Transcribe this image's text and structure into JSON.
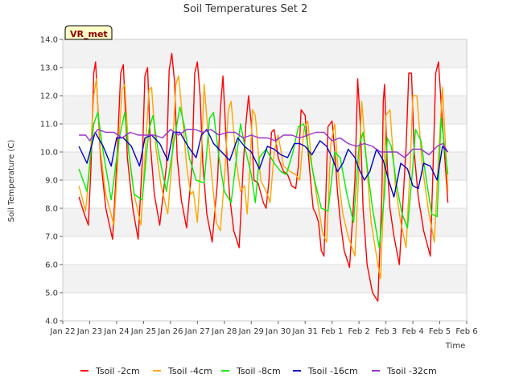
{
  "chart_data": {
    "type": "line",
    "title": "Soil Temperatures Set 2",
    "xlabel": "Time",
    "ylabel": "Soil Temperature (C)",
    "ylim": [
      4.0,
      14.0
    ],
    "xlim": [
      0,
      15
    ],
    "y_ticks": [
      4.0,
      5.0,
      6.0,
      7.0,
      8.0,
      9.0,
      10.0,
      11.0,
      12.0,
      13.0,
      14.0
    ],
    "y_tick_labels": [
      "4.0",
      "5.0",
      "6.0",
      "7.0",
      "8.0",
      "9.0",
      "10.0",
      "11.0",
      "12.0",
      "13.0",
      "14.0"
    ],
    "x_ticks": [
      0,
      1,
      2,
      3,
      4,
      5,
      6,
      7,
      8,
      9,
      10,
      11,
      12,
      13,
      14,
      15
    ],
    "x_tick_labels": [
      "Jan 22",
      "Jan 23",
      "Jan 24",
      "Jan 25",
      "Jan 26",
      "Jan 27",
      "Jan 28",
      "Jan 29",
      "Jan 30",
      "Jan 31",
      "Feb 1",
      "Feb 2",
      "Feb 3",
      "Feb 4",
      "Feb 5",
      "Feb 6"
    ],
    "grid": "horizontal bands",
    "legend_position": "bottom",
    "badge": "VR_met",
    "series": [
      {
        "name": "Tsoil -2cm",
        "color": "#ff0000",
        "x": [
          0.6,
          0.8,
          0.95,
          1.05,
          1.15,
          1.22,
          1.4,
          1.6,
          1.85,
          2.0,
          2.15,
          2.25,
          2.4,
          2.6,
          2.8,
          2.95,
          3.05,
          3.15,
          3.25,
          3.4,
          3.6,
          3.85,
          3.95,
          4.05,
          4.15,
          4.25,
          4.4,
          4.6,
          4.8,
          4.9,
          5.0,
          5.1,
          5.2,
          5.35,
          5.55,
          5.75,
          5.85,
          5.95,
          6.1,
          6.2,
          6.35,
          6.55,
          6.7,
          6.8,
          6.9,
          7.0,
          7.1,
          7.25,
          7.45,
          7.55,
          7.65,
          7.75,
          7.85,
          8.0,
          8.2,
          8.35,
          8.5,
          8.65,
          8.75,
          8.85,
          9.0,
          9.2,
          9.3,
          9.4,
          9.5,
          9.6,
          9.7,
          9.85,
          10.0,
          10.1,
          10.2,
          10.3,
          10.45,
          10.65,
          10.85,
          10.95,
          11.05,
          11.15,
          11.3,
          11.5,
          11.7,
          11.85,
          11.9,
          11.95,
          12.05,
          12.15,
          12.3,
          12.5,
          12.75,
          12.85,
          12.95,
          13.05,
          13.2,
          13.4,
          13.65,
          13.75,
          13.85,
          13.95,
          14.1,
          14.3
        ],
        "y": [
          8.4,
          7.8,
          7.4,
          9.5,
          12.8,
          13.2,
          9.8,
          8.0,
          6.9,
          9.5,
          12.8,
          13.1,
          9.8,
          8.0,
          6.9,
          9.6,
          12.7,
          13.0,
          10.3,
          8.5,
          7.4,
          9.5,
          12.9,
          13.5,
          12.5,
          9.8,
          8.3,
          7.3,
          9.5,
          12.8,
          13.2,
          12.0,
          9.6,
          7.8,
          6.8,
          9.0,
          11.5,
          12.7,
          9.8,
          8.4,
          7.2,
          6.6,
          9.5,
          11.0,
          12.0,
          11.0,
          9.0,
          8.9,
          8.2,
          8.0,
          8.9,
          10.7,
          10.8,
          9.8,
          9.3,
          9.2,
          8.8,
          8.7,
          9.5,
          11.5,
          11.3,
          9.0,
          8.0,
          7.8,
          7.5,
          6.5,
          6.3,
          10.9,
          11.1,
          10.0,
          8.6,
          7.6,
          6.5,
          5.9,
          9.0,
          12.6,
          11.0,
          8.0,
          6.0,
          5.0,
          4.7,
          8.5,
          11.8,
          12.4,
          9.5,
          8.0,
          7.0,
          6.0,
          10.2,
          12.8,
          12.8,
          10.0,
          8.4,
          7.2,
          6.3,
          9.5,
          12.8,
          13.2,
          11.0,
          8.2
        ]
      },
      {
        "name": "Tsoil -4cm",
        "color": "#ffa500",
        "x": [
          0.6,
          0.85,
          1.0,
          1.15,
          1.25,
          1.4,
          1.6,
          1.9,
          2.05,
          2.2,
          2.3,
          2.45,
          2.65,
          2.9,
          3.05,
          3.2,
          3.3,
          3.45,
          3.65,
          3.9,
          4.05,
          4.2,
          4.3,
          4.45,
          4.6,
          4.75,
          4.85,
          5.0,
          5.15,
          5.25,
          5.45,
          5.7,
          5.85,
          6.0,
          6.15,
          6.25,
          6.45,
          6.6,
          6.75,
          6.85,
          6.95,
          7.05,
          7.15,
          7.35,
          7.6,
          7.7,
          7.85,
          8.0,
          8.2,
          8.45,
          8.65,
          8.8,
          8.95,
          9.1,
          9.25,
          9.45,
          9.65,
          9.8,
          9.95,
          10.1,
          10.25,
          10.4,
          10.6,
          10.85,
          11.0,
          11.1,
          11.25,
          11.45,
          11.7,
          11.8,
          11.9,
          12.0,
          12.15,
          12.35,
          12.55,
          12.75,
          12.9,
          13.0,
          13.15,
          13.35,
          13.6,
          13.8,
          13.95,
          14.1,
          14.3
        ],
        "y": [
          8.8,
          7.9,
          9.5,
          12.0,
          12.6,
          10.0,
          8.5,
          7.4,
          9.8,
          12.2,
          12.4,
          10.0,
          8.5,
          7.4,
          9.8,
          12.2,
          12.3,
          10.2,
          8.8,
          7.8,
          9.6,
          12.4,
          12.7,
          11.2,
          9.5,
          8.5,
          8.6,
          7.5,
          10.0,
          12.4,
          10.0,
          7.5,
          7.2,
          9.0,
          11.5,
          11.8,
          9.6,
          8.6,
          8.8,
          7.8,
          9.5,
          11.5,
          11.3,
          9.0,
          8.5,
          8.2,
          10.0,
          10.6,
          9.5,
          9.3,
          9.2,
          9.0,
          10.8,
          11.1,
          9.5,
          8.3,
          7.1,
          6.8,
          10.3,
          11.0,
          9.0,
          7.8,
          7.0,
          6.3,
          9.5,
          11.8,
          10.0,
          7.5,
          6.0,
          5.5,
          8.0,
          11.3,
          11.5,
          8.8,
          7.5,
          6.6,
          9.5,
          12.0,
          12.0,
          9.5,
          7.8,
          6.8,
          9.8,
          12.3,
          8.6
        ]
      },
      {
        "name": "Tsoil -8cm",
        "color": "#00ee00",
        "x": [
          0.6,
          0.9,
          1.15,
          1.3,
          1.5,
          1.8,
          2.1,
          2.3,
          2.45,
          2.65,
          2.95,
          3.2,
          3.35,
          3.55,
          3.85,
          4.15,
          4.35,
          4.5,
          4.7,
          4.95,
          5.25,
          5.45,
          5.6,
          5.8,
          6.0,
          6.25,
          6.45,
          6.6,
          6.8,
          7.0,
          7.15,
          7.3,
          7.55,
          7.85,
          8.1,
          8.3,
          8.55,
          8.75,
          8.95,
          9.15,
          9.35,
          9.6,
          9.85,
          10.1,
          10.3,
          10.55,
          10.8,
          11.0,
          11.15,
          11.3,
          11.5,
          11.75,
          11.95,
          12.05,
          12.2,
          12.4,
          12.6,
          12.8,
          13.0,
          13.1,
          13.3,
          13.5,
          13.7,
          13.9,
          14.05,
          14.3
        ],
        "y": [
          9.4,
          8.6,
          11.0,
          11.4,
          10.0,
          8.3,
          10.5,
          11.4,
          10.0,
          8.5,
          8.3,
          10.8,
          11.3,
          10.0,
          8.6,
          10.5,
          11.6,
          11.0,
          9.8,
          9.0,
          8.9,
          11.2,
          11.4,
          9.8,
          8.6,
          8.2,
          9.8,
          11.0,
          10.0,
          9.2,
          8.2,
          9.8,
          10.1,
          9.6,
          9.3,
          9.2,
          10.0,
          10.9,
          11.0,
          10.0,
          9.0,
          8.0,
          7.9,
          10.0,
          9.8,
          8.5,
          7.5,
          10.2,
          10.7,
          9.5,
          8.0,
          6.6,
          8.5,
          10.5,
          10.2,
          8.8,
          7.8,
          7.3,
          9.5,
          10.8,
          10.4,
          9.0,
          7.8,
          7.7,
          11.2,
          9.2
        ]
      },
      {
        "name": "Tsoil -16cm",
        "color": "#0000cc",
        "x": [
          0.6,
          0.9,
          1.2,
          1.5,
          1.8,
          2.0,
          2.25,
          2.55,
          2.85,
          3.05,
          3.3,
          3.6,
          3.9,
          4.1,
          4.35,
          4.65,
          4.95,
          5.15,
          5.35,
          5.6,
          5.9,
          6.2,
          6.5,
          6.75,
          7.0,
          7.3,
          7.6,
          7.85,
          8.1,
          8.35,
          8.6,
          8.8,
          9.0,
          9.25,
          9.55,
          9.8,
          10.0,
          10.2,
          10.4,
          10.6,
          10.85,
          11.0,
          11.2,
          11.4,
          11.65,
          11.9,
          12.1,
          12.3,
          12.55,
          12.8,
          13.0,
          13.2,
          13.4,
          13.65,
          13.9,
          14.1,
          14.3
        ],
        "y": [
          10.2,
          9.6,
          10.7,
          10.2,
          9.5,
          10.5,
          10.5,
          10.2,
          9.5,
          10.5,
          10.6,
          10.3,
          9.7,
          10.7,
          10.7,
          10.2,
          9.8,
          10.6,
          10.8,
          10.3,
          10.0,
          9.7,
          10.5,
          10.2,
          10.0,
          9.4,
          10.2,
          10.1,
          9.9,
          9.8,
          10.3,
          10.3,
          10.2,
          9.9,
          10.4,
          10.2,
          9.8,
          9.3,
          9.6,
          10.1,
          9.8,
          9.4,
          9.0,
          9.3,
          10.1,
          9.7,
          9.0,
          8.4,
          9.6,
          9.4,
          8.8,
          8.7,
          9.6,
          9.5,
          9.0,
          10.2,
          10.0
        ]
      },
      {
        "name": "Tsoil -32cm",
        "color": "#9933cc",
        "x": [
          0.6,
          0.85,
          1.0,
          1.3,
          1.6,
          1.9,
          2.2,
          2.5,
          2.8,
          3.1,
          3.4,
          3.7,
          4.0,
          4.3,
          4.6,
          4.9,
          5.2,
          5.5,
          5.8,
          6.1,
          6.4,
          6.7,
          7.0,
          7.3,
          7.6,
          7.9,
          8.2,
          8.5,
          8.8,
          9.1,
          9.4,
          9.7,
          10.0,
          10.3,
          10.6,
          10.9,
          11.2,
          11.5,
          11.8,
          12.1,
          12.4,
          12.7,
          13.0,
          13.3,
          13.6,
          13.9,
          14.1,
          14.3
        ],
        "y": [
          10.6,
          10.6,
          10.4,
          10.8,
          10.7,
          10.7,
          10.5,
          10.7,
          10.6,
          10.6,
          10.6,
          10.5,
          10.8,
          10.6,
          10.8,
          10.8,
          10.7,
          10.8,
          10.6,
          10.7,
          10.7,
          10.5,
          10.6,
          10.5,
          10.5,
          10.4,
          10.6,
          10.6,
          10.5,
          10.6,
          10.7,
          10.7,
          10.4,
          10.5,
          10.3,
          10.2,
          10.3,
          10.2,
          10.0,
          10.0,
          10.0,
          9.8,
          10.1,
          10.1,
          9.9,
          10.2,
          10.3,
          10.0
        ]
      }
    ]
  }
}
